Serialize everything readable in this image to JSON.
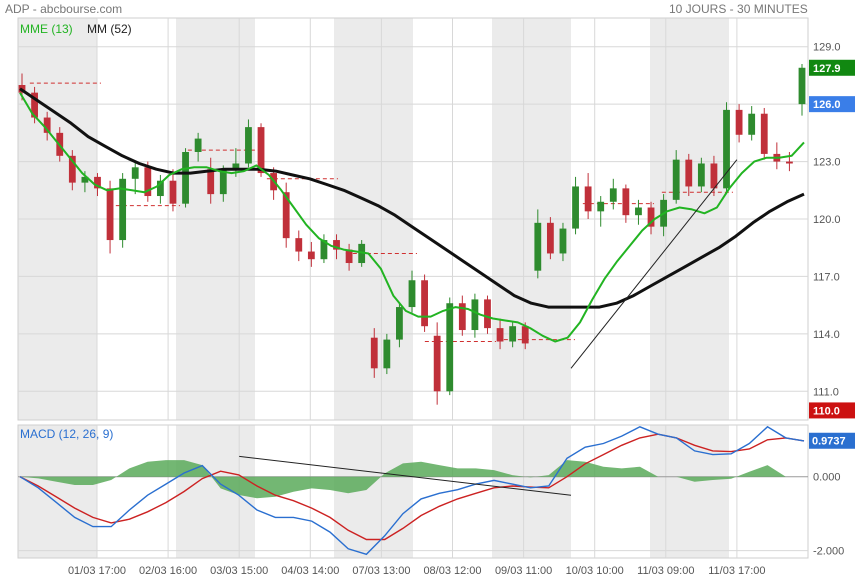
{
  "header": {
    "source": "ADP - abcbourse.com",
    "period": "10 JOURS - 30 MINUTES"
  },
  "colors": {
    "ema": "#22b422",
    "sma": "#111111",
    "candle_up": "#2e8b2e",
    "candle_down": "#c0303a",
    "macd": "#2a6fd0",
    "signal": "#cc2222",
    "histogram": "#5aaa5a",
    "shade": "#ebebeb",
    "grid": "#d8d8d8",
    "last_price_tag": "#118811",
    "ema_tag": "#3a7ee8",
    "low_tag": "#cc1111",
    "macd_tag": "#2a6fd0"
  },
  "chart_data": [
    {
      "type": "candlestick",
      "legend": [
        {
          "label": "MME (13)",
          "color": "#22b422"
        },
        {
          "label": "MM (52)",
          "color": "#111111"
        }
      ],
      "y_ticks": [
        "129.0",
        "126.0",
        "123.0",
        "120.0",
        "117.0",
        "114.0",
        "111.0"
      ],
      "y_tick_values": [
        129,
        126,
        123,
        120,
        117,
        114,
        111
      ],
      "ylim": [
        109.5,
        130.5
      ],
      "price_tags": [
        {
          "label": "127.9",
          "value": 127.9,
          "role": "last"
        },
        {
          "label": "126.0",
          "value": 126.0,
          "role": "ema"
        },
        {
          "label": "110.0",
          "value": 110.0,
          "role": "low"
        }
      ],
      "session_open_levels": [
        127.1,
        120.7,
        123.6,
        122.1,
        118.2,
        113.6,
        113.7,
        120.8,
        121.4
      ],
      "trendline": {
        "from": [
          7.0,
          112.2
        ],
        "to": [
          9.1,
          123.1
        ]
      },
      "ema": [
        126.6,
        125.5,
        124.8,
        124.0,
        123.2,
        122.4,
        121.8,
        121.5,
        121.6,
        121.5,
        121.4,
        121.7,
        122.3,
        122.6,
        122.7,
        122.7,
        122.5,
        122.4,
        122.5,
        122.8,
        122.3,
        121.5,
        120.6,
        119.7,
        119.0,
        118.6,
        118.4,
        118.3,
        118.2,
        117.4,
        116.0,
        115.2,
        114.9,
        114.9,
        115.2,
        115.4,
        115.3,
        115.0,
        114.8,
        114.7,
        114.6,
        114.3,
        113.9,
        113.6,
        113.8,
        114.6,
        115.8,
        116.9,
        117.8,
        118.6,
        119.4,
        120.0,
        120.4,
        120.6,
        120.5,
        120.3,
        120.6,
        121.6,
        122.4,
        123.0,
        123.2,
        123.2,
        123.3,
        124.0
      ],
      "sma": [
        126.8,
        126.2,
        125.6,
        125.0,
        124.3,
        123.8,
        123.3,
        122.9,
        122.6,
        122.4,
        122.4,
        122.5,
        122.6,
        122.6,
        122.6,
        122.5,
        122.3,
        122.1,
        121.8,
        121.5,
        121.1,
        120.7,
        120.2,
        119.6,
        119.0,
        118.4,
        117.8,
        117.2,
        116.6,
        116.0,
        115.6,
        115.4,
        115.4,
        115.4,
        115.4,
        115.6,
        116.0,
        116.5,
        117.0,
        117.5,
        118.0,
        118.5,
        119.1,
        119.8,
        120.4,
        120.9,
        121.3
      ],
      "ohlc": [
        [
          127.0,
          127.6,
          126.2,
          126.6
        ],
        [
          126.6,
          126.9,
          125.0,
          125.3
        ],
        [
          125.3,
          125.6,
          124.1,
          124.5
        ],
        [
          124.5,
          124.8,
          123.0,
          123.3
        ],
        [
          123.3,
          123.6,
          121.5,
          121.9
        ],
        [
          121.9,
          122.5,
          121.4,
          122.2
        ],
        [
          122.2,
          122.4,
          121.2,
          121.6
        ],
        [
          121.6,
          122.0,
          118.2,
          118.9
        ],
        [
          118.9,
          122.4,
          118.5,
          122.1
        ],
        [
          122.1,
          123.0,
          121.3,
          122.7
        ],
        [
          122.7,
          123.0,
          120.9,
          121.2
        ],
        [
          121.2,
          122.3,
          120.8,
          122.0
        ],
        [
          122.0,
          122.6,
          120.4,
          120.8
        ],
        [
          120.8,
          123.7,
          120.6,
          123.5
        ],
        [
          123.5,
          124.5,
          123.0,
          124.2
        ],
        [
          122.6,
          123.2,
          120.8,
          121.3
        ],
        [
          121.3,
          122.8,
          120.9,
          122.6
        ],
        [
          122.6,
          123.7,
          122.2,
          122.9
        ],
        [
          122.9,
          125.2,
          122.7,
          124.8
        ],
        [
          124.8,
          125.0,
          122.2,
          122.4
        ],
        [
          122.4,
          122.7,
          121.0,
          121.5
        ],
        [
          121.4,
          121.9,
          118.5,
          119.0
        ],
        [
          119.0,
          119.4,
          117.8,
          118.3
        ],
        [
          118.3,
          118.8,
          117.5,
          117.9
        ],
        [
          117.9,
          119.2,
          117.7,
          118.9
        ],
        [
          118.9,
          119.2,
          117.9,
          118.4
        ],
        [
          118.4,
          118.7,
          117.3,
          117.7
        ],
        [
          117.7,
          118.9,
          117.5,
          118.7
        ],
        [
          113.8,
          114.3,
          111.7,
          112.2
        ],
        [
          112.2,
          114.0,
          111.9,
          113.7
        ],
        [
          113.7,
          115.6,
          113.3,
          115.4
        ],
        [
          115.4,
          117.3,
          115.1,
          116.8
        ],
        [
          116.8,
          117.1,
          114.1,
          114.4
        ],
        [
          113.9,
          114.6,
          110.3,
          111.0
        ],
        [
          111.0,
          115.9,
          110.8,
          115.6
        ],
        [
          115.6,
          116.0,
          113.9,
          114.2
        ],
        [
          114.2,
          116.1,
          113.8,
          115.8
        ],
        [
          115.8,
          116.0,
          114.0,
          114.3
        ],
        [
          114.3,
          114.8,
          113.2,
          113.6
        ],
        [
          113.6,
          114.6,
          113.3,
          114.4
        ],
        [
          114.4,
          114.6,
          113.2,
          113.5
        ],
        [
          117.3,
          120.5,
          116.9,
          119.8
        ],
        [
          119.8,
          120.1,
          117.9,
          118.2
        ],
        [
          118.2,
          119.8,
          117.8,
          119.5
        ],
        [
          119.5,
          122.2,
          119.2,
          121.7
        ],
        [
          121.7,
          122.4,
          120.0,
          120.4
        ],
        [
          120.4,
          121.2,
          119.6,
          120.9
        ],
        [
          120.9,
          122.1,
          120.5,
          121.6
        ],
        [
          121.6,
          121.8,
          119.8,
          120.2
        ],
        [
          120.2,
          121.0,
          119.7,
          120.6
        ],
        [
          120.6,
          120.9,
          119.2,
          119.6
        ],
        [
          119.6,
          121.3,
          119.1,
          121.0
        ],
        [
          121.0,
          123.6,
          120.8,
          123.1
        ],
        [
          123.1,
          123.4,
          121.2,
          121.7
        ],
        [
          121.7,
          123.2,
          121.4,
          122.9
        ],
        [
          122.9,
          123.3,
          121.2,
          121.6
        ],
        [
          121.6,
          126.1,
          121.3,
          125.7
        ],
        [
          125.7,
          126.0,
          124.0,
          124.4
        ],
        [
          124.4,
          125.9,
          124.1,
          125.5
        ],
        [
          125.5,
          125.8,
          123.1,
          123.4
        ],
        [
          123.4,
          124.0,
          122.6,
          123.0
        ],
        [
          123.0,
          123.5,
          122.5,
          122.9
        ],
        [
          126.0,
          128.1,
          125.4,
          127.9
        ]
      ]
    },
    {
      "type": "line",
      "title": "MACD (12, 26, 9)",
      "y_ticks": [
        "0.000",
        "-2.000"
      ],
      "y_tick_values": [
        0,
        -2
      ],
      "ylim": [
        -2.2,
        1.4
      ],
      "last_value": {
        "label": "0.9737",
        "value": 0.9737
      },
      "trendline": {
        "from": [
          2.8,
          0.55
        ],
        "to": [
          7.0,
          -0.5
        ]
      },
      "macd": [
        0,
        -0.3,
        -0.7,
        -1.1,
        -1.35,
        -1.35,
        -0.9,
        -0.5,
        -0.2,
        0.1,
        0.3,
        -0.2,
        -0.5,
        -0.9,
        -1.1,
        -1.1,
        -1.2,
        -1.5,
        -1.95,
        -2.1,
        -1.6,
        -1.0,
        -0.6,
        -0.45,
        -0.35,
        -0.2,
        -0.1,
        -0.2,
        -0.3,
        -0.25,
        0.5,
        0.8,
        0.9,
        1.1,
        1.35,
        1.15,
        1.05,
        0.7,
        0.6,
        0.62,
        0.9,
        1.35,
        1.05,
        0.97
      ],
      "signal": [
        0,
        -0.25,
        -0.55,
        -0.85,
        -1.1,
        -1.25,
        -1.15,
        -0.95,
        -0.7,
        -0.4,
        -0.05,
        0.15,
        0.05,
        -0.25,
        -0.5,
        -0.65,
        -0.85,
        -1.1,
        -1.45,
        -1.7,
        -1.7,
        -1.4,
        -1.05,
        -0.8,
        -0.6,
        -0.45,
        -0.3,
        -0.25,
        -0.28,
        -0.3,
        0.0,
        0.35,
        0.6,
        0.85,
        1.05,
        1.15,
        1.05,
        0.85,
        0.7,
        0.68,
        0.75,
        1.0,
        1.05,
        0.97
      ]
    }
  ],
  "x_axis": {
    "labels": [
      "01/03 17:00",
      "02/03 16:00",
      "03/03 15:00",
      "04/03 14:00",
      "07/03 13:00",
      "08/03 12:00",
      "09/03 11:00",
      "10/03 10:00",
      "11/03 09:00",
      "11/03 17:00"
    ],
    "label_positions": [
      1.0,
      1.9,
      2.8,
      3.7,
      4.6,
      5.5,
      6.4,
      7.3,
      8.2,
      9.1
    ],
    "shaded_days": [
      0,
      2,
      4,
      6,
      8
    ]
  }
}
